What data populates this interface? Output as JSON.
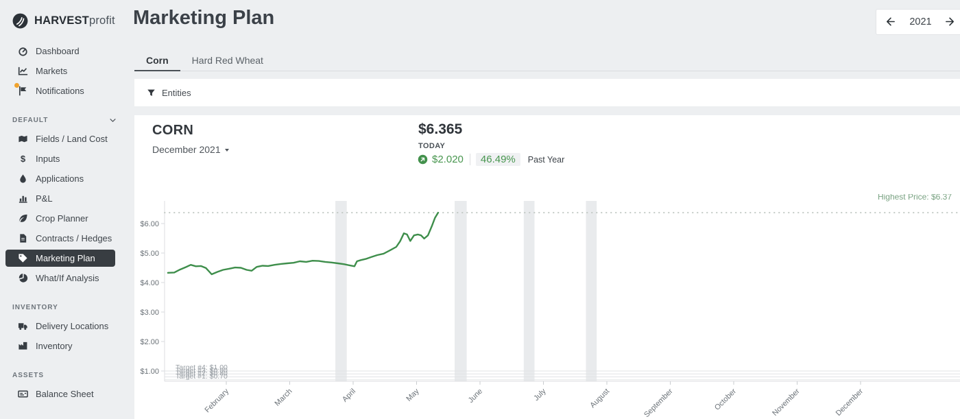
{
  "brand": {
    "bold": "HARVEST",
    "light": "profit"
  },
  "header": {
    "title": "Marketing Plan",
    "year_nav": {
      "year": "2021"
    }
  },
  "sidebar": {
    "sections": [
      {
        "header": null,
        "collapsible": false,
        "items": [
          {
            "icon": "gauge-icon",
            "label": "Dashboard",
            "selected": false,
            "badge": false
          },
          {
            "icon": "chart-line-icon",
            "label": "Markets",
            "selected": false,
            "badge": false
          },
          {
            "icon": "flag-icon",
            "label": "Notifications",
            "selected": false,
            "badge": true
          }
        ]
      },
      {
        "header": "DEFAULT",
        "collapsible": true,
        "items": [
          {
            "icon": "map-icon",
            "label": "Fields / Land Cost",
            "selected": false,
            "badge": false
          },
          {
            "icon": "dollar-icon",
            "label": "Inputs",
            "selected": false,
            "badge": false
          },
          {
            "icon": "droplet-icon",
            "label": "Applications",
            "selected": false,
            "badge": false
          },
          {
            "icon": "chart-bar-icon",
            "label": "P&L",
            "selected": false,
            "badge": false
          },
          {
            "icon": "leaf-icon",
            "label": "Crop Planner",
            "selected": false,
            "badge": false
          },
          {
            "icon": "file-contract-icon",
            "label": "Contracts / Hedges",
            "selected": false,
            "badge": false
          },
          {
            "icon": "tag-icon",
            "label": "Marketing Plan",
            "selected": true,
            "badge": false
          },
          {
            "icon": "pie-chart-icon",
            "label": "What/If Analysis",
            "selected": false,
            "badge": false
          }
        ]
      },
      {
        "header": "INVENTORY",
        "collapsible": false,
        "items": [
          {
            "icon": "truck-icon",
            "label": "Delivery Locations",
            "selected": false,
            "badge": false
          },
          {
            "icon": "industry-icon",
            "label": "Inventory",
            "selected": false,
            "badge": false
          }
        ]
      },
      {
        "header": "ASSETS",
        "collapsible": false,
        "items": [
          {
            "icon": "money-check-icon",
            "label": "Balance Sheet",
            "selected": false,
            "badge": false
          }
        ]
      }
    ]
  },
  "tabs": [
    {
      "label": "Corn",
      "active": true
    },
    {
      "label": "Hard Red Wheat",
      "active": false
    }
  ],
  "filter_bar": {
    "label": "Entities"
  },
  "commodity": {
    "name": "CORN",
    "contract": "December 2021",
    "price": "$6.365",
    "price_label": "TODAY",
    "change_amount": "$2.020",
    "change_percent": "46.49%",
    "change_period": "Past Year",
    "accent_green": "#48964f"
  },
  "chart_data": {
    "type": "line",
    "title": "",
    "xlabel": "",
    "ylabel": "",
    "ylim": [
      0.65,
      6.75
    ],
    "grid": false,
    "y_ticks": [
      {
        "value": 6,
        "label": "$6.00"
      },
      {
        "value": 5,
        "label": "$5.00"
      },
      {
        "value": 4,
        "label": "$4.00"
      },
      {
        "value": 3,
        "label": "$3.00"
      },
      {
        "value": 2,
        "label": "$2.00"
      },
      {
        "value": 1,
        "label": "$1.00"
      }
    ],
    "x_months": [
      "February",
      "March",
      "April",
      "May",
      "June",
      "July",
      "August",
      "September",
      "October",
      "November",
      "December"
    ],
    "highest_price": {
      "label": "Highest Price: $6.37",
      "value": 6.37,
      "color": "#7aa383",
      "line_color": "#c3cac5"
    },
    "targets": [
      {
        "label": "Target #4: $1.00",
        "value": 1.0
      },
      {
        "label": "Target #3: $0.90",
        "value": 0.9
      },
      {
        "label": "Target #2: $0.80",
        "value": 0.8
      },
      {
        "label": "Target #1: $0.70",
        "value": 0.7
      }
    ],
    "shaded_bands_months": [
      [
        2.72,
        2.9
      ],
      [
        4.6,
        4.79
      ],
      [
        5.69,
        5.86
      ],
      [
        6.67,
        6.84
      ]
    ],
    "series": [
      {
        "name": "Corn price",
        "color": "#3e8e4b",
        "points": [
          [
            0.08,
            4.33
          ],
          [
            0.18,
            4.34
          ],
          [
            0.27,
            4.44
          ],
          [
            0.36,
            4.52
          ],
          [
            0.44,
            4.6
          ],
          [
            0.52,
            4.55
          ],
          [
            0.6,
            4.56
          ],
          [
            0.68,
            4.49
          ],
          [
            0.77,
            4.28
          ],
          [
            0.86,
            4.36
          ],
          [
            0.95,
            4.43
          ],
          [
            1.05,
            4.47
          ],
          [
            1.14,
            4.51
          ],
          [
            1.23,
            4.5
          ],
          [
            1.32,
            4.43
          ],
          [
            1.4,
            4.4
          ],
          [
            1.48,
            4.53
          ],
          [
            1.57,
            4.57
          ],
          [
            1.66,
            4.56
          ],
          [
            1.76,
            4.6
          ],
          [
            1.86,
            4.63
          ],
          [
            1.96,
            4.65
          ],
          [
            2.06,
            4.67
          ],
          [
            2.16,
            4.72
          ],
          [
            2.26,
            4.7
          ],
          [
            2.36,
            4.74
          ],
          [
            2.46,
            4.73
          ],
          [
            2.56,
            4.7
          ],
          [
            2.66,
            4.68
          ],
          [
            2.76,
            4.65
          ],
          [
            2.86,
            4.62
          ],
          [
            2.95,
            4.58
          ],
          [
            3.02,
            4.55
          ],
          [
            3.06,
            4.72
          ],
          [
            3.12,
            4.76
          ],
          [
            3.2,
            4.8
          ],
          [
            3.28,
            4.86
          ],
          [
            3.38,
            4.93
          ],
          [
            3.48,
            4.98
          ],
          [
            3.58,
            5.09
          ],
          [
            3.68,
            5.21
          ],
          [
            3.74,
            5.4
          ],
          [
            3.8,
            5.67
          ],
          [
            3.85,
            5.63
          ],
          [
            3.9,
            5.41
          ],
          [
            3.96,
            5.6
          ],
          [
            4.02,
            5.63
          ],
          [
            4.07,
            5.6
          ],
          [
            4.12,
            5.49
          ],
          [
            4.18,
            5.6
          ],
          [
            4.24,
            5.91
          ],
          [
            4.29,
            6.19
          ],
          [
            4.34,
            6.37
          ]
        ]
      }
    ]
  }
}
